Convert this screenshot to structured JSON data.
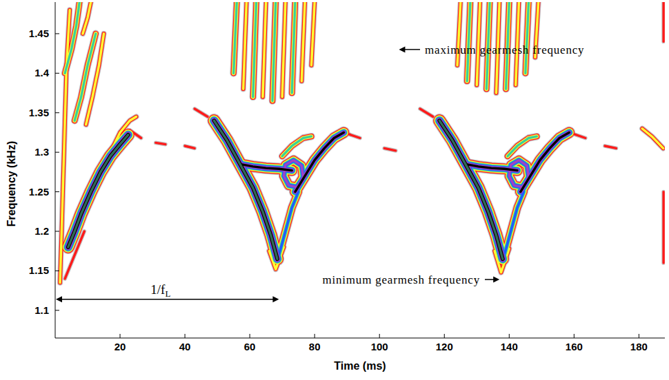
{
  "chart_data": {
    "type": "contour",
    "x_label": "Time (ms)",
    "y_label": "Frequency (kHz)",
    "xlim": [
      0,
      188
    ],
    "ylim": [
      1.065,
      1.49
    ],
    "xticks": [
      20,
      40,
      60,
      80,
      100,
      120,
      140,
      160,
      180
    ],
    "yticks": [
      1.1,
      1.15,
      1.2,
      1.25,
      1.3,
      1.35,
      1.4,
      1.45
    ],
    "grid": false,
    "colors": [
      "#c3c3c3",
      "#ff1a1a",
      "#ffff33",
      "#3ccf9a",
      "#1f5cff",
      "#a044c4",
      "#000000",
      "#2f6b55"
    ],
    "ridges": [
      {
        "t": [
          1.5,
          2,
          2.5,
          3,
          3.5,
          4.5
        ],
        "f": [
          1.135,
          1.2,
          1.27,
          1.34,
          1.41,
          1.48
        ],
        "level": 3
      },
      {
        "t": [
          4,
          6,
          8,
          11,
          14,
          17,
          20,
          22.5
        ],
        "f": [
          1.18,
          1.2,
          1.222,
          1.25,
          1.275,
          1.295,
          1.31,
          1.322
        ],
        "level": 8
      },
      {
        "t": [
          17,
          20,
          23,
          25
        ],
        "f": [
          1.3,
          1.325,
          1.34,
          1.345
        ],
        "level": 3
      },
      {
        "t": [
          6,
          8,
          10,
          12.5
        ],
        "f": [
          1.34,
          1.37,
          1.41,
          1.45
        ],
        "level": 4
      },
      {
        "t": [
          9.5,
          11.5,
          13.5,
          15
        ],
        "f": [
          1.335,
          1.37,
          1.41,
          1.45
        ],
        "level": 3
      },
      {
        "t": [
          3,
          5,
          6.5,
          7.5
        ],
        "f": [
          1.4,
          1.43,
          1.46,
          1.49
        ],
        "level": 4
      },
      {
        "t": [
          8.5,
          10,
          11
        ],
        "f": [
          1.45,
          1.47,
          1.49
        ],
        "level": 3
      },
      {
        "t": [
          23,
          26.5
        ],
        "f": [
          1.328,
          1.318
        ],
        "level": 2
      },
      {
        "t": [
          3,
          6,
          9
        ],
        "f": [
          1.14,
          1.17,
          1.2
        ],
        "level": 2
      },
      {
        "t": [
          49,
          53,
          57,
          61,
          64,
          66.5,
          68.5
        ],
        "f": [
          1.34,
          1.315,
          1.285,
          1.255,
          1.225,
          1.195,
          1.165
        ],
        "level": 8
      },
      {
        "t": [
          66,
          68,
          70.5
        ],
        "f": [
          1.175,
          1.152,
          1.18
        ],
        "level": 3
      },
      {
        "t": [
          69,
          71,
          73,
          75
        ],
        "f": [
          1.17,
          1.2,
          1.23,
          1.25
        ],
        "level": 5
      },
      {
        "t": [
          57,
          61,
          65,
          69,
          73
        ],
        "f": [
          1.285,
          1.282,
          1.28,
          1.279,
          1.277
        ],
        "level": 7
      },
      {
        "t": [
          70.5,
          72,
          74.5,
          76.5,
          76,
          73.5,
          71,
          70.5
        ],
        "f": [
          1.27,
          1.258,
          1.256,
          1.268,
          1.283,
          1.29,
          1.284,
          1.27
        ],
        "level": 6
      },
      {
        "t": [
          74,
          77,
          80,
          83,
          86,
          89
        ],
        "f": [
          1.25,
          1.27,
          1.29,
          1.305,
          1.318,
          1.325
        ],
        "level": 7
      },
      {
        "t": [
          70,
          73,
          76.5,
          79
        ],
        "f": [
          1.295,
          1.308,
          1.318,
          1.32
        ],
        "level": 4
      },
      {
        "t": [
          43,
          47
        ],
        "f": [
          1.355,
          1.345
        ],
        "level": 2
      },
      {
        "t": [
          89,
          94
        ],
        "f": [
          1.325,
          1.318
        ],
        "level": 2
      },
      {
        "t": [
          55,
          56
        ],
        "f": [
          1.4,
          1.49
        ],
        "level": 4
      },
      {
        "t": [
          58,
          59
        ],
        "f": [
          1.38,
          1.49
        ],
        "level": 3
      },
      {
        "t": [
          61,
          62
        ],
        "f": [
          1.37,
          1.49
        ],
        "level": 4
      },
      {
        "t": [
          64,
          65
        ],
        "f": [
          1.37,
          1.49
        ],
        "level": 3
      },
      {
        "t": [
          67,
          68
        ],
        "f": [
          1.365,
          1.49
        ],
        "level": 4
      },
      {
        "t": [
          70,
          71
        ],
        "f": [
          1.37,
          1.49
        ],
        "level": 3
      },
      {
        "t": [
          73,
          74
        ],
        "f": [
          1.375,
          1.49
        ],
        "level": 4
      },
      {
        "t": [
          76,
          77
        ],
        "f": [
          1.39,
          1.49
        ],
        "level": 3
      },
      {
        "t": [
          79,
          80
        ],
        "f": [
          1.41,
          1.49
        ],
        "level": 3
      },
      {
        "t": [
          118.5,
          122.5,
          126.5,
          130.5,
          133.5,
          136,
          138
        ],
        "f": [
          1.34,
          1.315,
          1.285,
          1.255,
          1.225,
          1.195,
          1.165
        ],
        "level": 8
      },
      {
        "t": [
          135.5,
          137.5,
          140
        ],
        "f": [
          1.175,
          1.148,
          1.178
        ],
        "level": 3
      },
      {
        "t": [
          138.5,
          140.5,
          142.5,
          144.5
        ],
        "f": [
          1.17,
          1.2,
          1.23,
          1.25
        ],
        "level": 5
      },
      {
        "t": [
          126.5,
          130.5,
          134.5,
          138.5,
          142.5
        ],
        "f": [
          1.285,
          1.282,
          1.28,
          1.279,
          1.277
        ],
        "level": 7
      },
      {
        "t": [
          140,
          141.5,
          144,
          146,
          145.5,
          143,
          140.5,
          140
        ],
        "f": [
          1.27,
          1.258,
          1.256,
          1.268,
          1.283,
          1.29,
          1.284,
          1.27
        ],
        "level": 6
      },
      {
        "t": [
          143.5,
          146.5,
          149.5,
          152.5,
          155.5,
          158.5
        ],
        "f": [
          1.25,
          1.27,
          1.29,
          1.305,
          1.318,
          1.325
        ],
        "level": 7
      },
      {
        "t": [
          139.5,
          142.5,
          146,
          148.5
        ],
        "f": [
          1.295,
          1.308,
          1.318,
          1.32
        ],
        "level": 4
      },
      {
        "t": [
          112.5,
          116.5
        ],
        "f": [
          1.355,
          1.345
        ],
        "level": 2
      },
      {
        "t": [
          158.5,
          163.5
        ],
        "f": [
          1.325,
          1.318
        ],
        "level": 2
      },
      {
        "t": [
          124,
          125
        ],
        "f": [
          1.41,
          1.49
        ],
        "level": 3
      },
      {
        "t": [
          127,
          128
        ],
        "f": [
          1.39,
          1.49
        ],
        "level": 4
      },
      {
        "t": [
          130,
          131
        ],
        "f": [
          1.385,
          1.49
        ],
        "level": 3
      },
      {
        "t": [
          133,
          134
        ],
        "f": [
          1.38,
          1.49
        ],
        "level": 4
      },
      {
        "t": [
          136,
          137
        ],
        "f": [
          1.375,
          1.49
        ],
        "level": 3
      },
      {
        "t": [
          139,
          140
        ],
        "f": [
          1.38,
          1.49
        ],
        "level": 4
      },
      {
        "t": [
          142,
          143
        ],
        "f": [
          1.385,
          1.49
        ],
        "level": 3
      },
      {
        "t": [
          145,
          146
        ],
        "f": [
          1.4,
          1.49
        ],
        "level": 4
      },
      {
        "t": [
          148,
          149
        ],
        "f": [
          1.42,
          1.49
        ],
        "level": 3
      },
      {
        "t": [
          31,
          34
        ],
        "f": [
          1.312,
          1.31
        ],
        "level": 2
      },
      {
        "t": [
          40,
          43
        ],
        "f": [
          1.308,
          1.305
        ],
        "level": 2
      },
      {
        "t": [
          101.5,
          105
        ],
        "f": [
          1.305,
          1.302
        ],
        "level": 2
      },
      {
        "t": [
          169.5,
          173
        ],
        "f": [
          1.308,
          1.305
        ],
        "level": 2
      },
      {
        "t": [
          181,
          184,
          187.5
        ],
        "f": [
          1.33,
          1.32,
          1.305
        ],
        "level": 3
      },
      {
        "t": [
          187.6,
          187.6
        ],
        "f": [
          1.16,
          1.25
        ],
        "level": 2
      },
      {
        "t": [
          187.6,
          187.6
        ],
        "f": [
          1.44,
          1.49
        ],
        "level": 2
      }
    ],
    "annotations": [
      {
        "text": "maximum gearmesh frequency",
        "x": 114,
        "y": 1.425,
        "arrow_x": 106,
        "arrow_y": 1.43
      },
      {
        "text": "minimum gearmesh frequency",
        "x": 131,
        "y": 1.134,
        "arrow_x": 137,
        "arrow_y": 1.139
      }
    ],
    "period": {
      "text": "1/f",
      "subscript": "L",
      "x": 32.5,
      "y": 1.121,
      "x0": 0,
      "x1": 69,
      "arrow_y": 1.114
    }
  }
}
